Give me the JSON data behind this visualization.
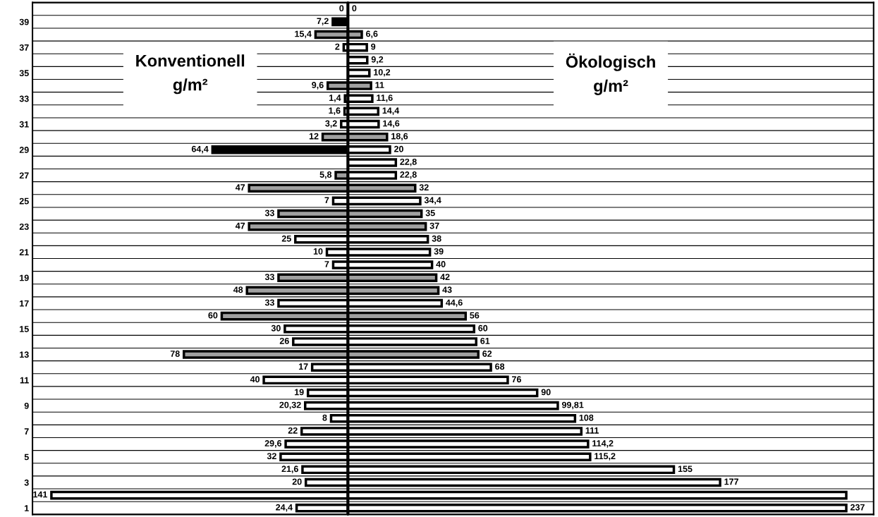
{
  "chart_data": [
    {
      "type": "bar",
      "orientation": "horizontal",
      "categories": [
        null,
        "39",
        null,
        "37",
        null,
        "35",
        null,
        "33",
        null,
        "31",
        null,
        "29",
        null,
        "27",
        null,
        "25",
        null,
        "23",
        null,
        "21",
        null,
        "19",
        null,
        "17",
        null,
        "15",
        null,
        "13",
        null,
        "11",
        null,
        "9",
        null,
        "7",
        null,
        "5",
        null,
        "3",
        null,
        "1"
      ],
      "xlim": [
        150,
        0
      ],
      "series": [
        {
          "values": [
            0,
            7.2,
            15.4,
            2,
            null,
            null,
            9.6,
            1.4,
            1.6,
            3.2,
            12,
            64.4,
            null,
            5.8,
            47,
            7,
            33,
            47,
            25,
            10,
            7,
            33,
            48,
            33,
            60,
            30,
            26,
            78,
            17,
            40,
            19,
            20.32,
            8,
            22,
            29.6,
            32,
            21.6,
            20,
            141,
            24.4
          ],
          "value_labels": [
            "0",
            "7,2",
            "15,4",
            "2",
            null,
            null,
            "9,6",
            "1,4",
            "1,6",
            "3,2",
            "12",
            "64,4",
            null,
            "5,8",
            "47",
            "7",
            "33",
            "47",
            "25",
            "10",
            "7",
            "33",
            "48",
            "33",
            "60",
            "30",
            "26",
            "78",
            "17",
            "40",
            "19",
            "20,32",
            "8",
            "22",
            "29,6",
            "32",
            "21,6",
            "20",
            "141",
            "24,4"
          ],
          "colors": [
            "#ffffff",
            "#000000",
            "#a0a0a0",
            "#ffffff",
            "#ffffff",
            "#ffffff",
            "#a0a0a0",
            "#ffffff",
            "#ffffff",
            "#ffffff",
            "#a0a0a0",
            "#000000",
            "#ffffff",
            "#a0a0a0",
            "#a0a0a0",
            "#ffffff",
            "#a0a0a0",
            "#a0a0a0",
            "#ffffff",
            "#ffffff",
            "#ffffff",
            "#a0a0a0",
            "#a0a0a0",
            "#ffffff",
            "#a0a0a0",
            "#ffffff",
            "#ffffff",
            "#a0a0a0",
            "#ffffff",
            "#ffffff",
            "#ffffff",
            "#ffffff",
            "#ffffff",
            "#ffffff",
            "#ffffff",
            "#ffffff",
            "#ffffff",
            "#ffffff",
            "#ffffff",
            "#ffffff"
          ]
        }
      ],
      "ref_lines": [
        {
          "axis": "x",
          "value": 0,
          "color": "#000000"
        }
      ],
      "annotations": [
        "Konventionell\ng/m²"
      ],
      "grid": "y",
      "legend": false,
      "tick_labels": "y"
    },
    {
      "type": "bar",
      "orientation": "horizontal",
      "categories": [
        null,
        "39",
        null,
        "37",
        null,
        "35",
        null,
        "33",
        null,
        "31",
        null,
        "29",
        null,
        "27",
        null,
        "25",
        null,
        "23",
        null,
        "21",
        null,
        "19",
        null,
        "17",
        null,
        "15",
        null,
        "13",
        null,
        "11",
        null,
        "9",
        null,
        "7",
        null,
        "5",
        null,
        "3",
        null,
        "1"
      ],
      "xlim": [
        0,
        250
      ],
      "series": [
        {
          "values": [
            0,
            null,
            6.6,
            9,
            9.2,
            10.2,
            11,
            11.6,
            14.4,
            14.6,
            18.6,
            20,
            22.8,
            22.8,
            32,
            34.4,
            35,
            37,
            38,
            39,
            40,
            42,
            43,
            44.6,
            56,
            60,
            61,
            62,
            68,
            76,
            90,
            99.81,
            108,
            111,
            114.2,
            115.2,
            155,
            177,
            237,
            237
          ],
          "value_labels": [
            "0",
            null,
            "6,6",
            "9",
            "9,2",
            "10,2",
            "11",
            "11,6",
            "14,4",
            "14,6",
            "18,6",
            "20",
            "22,8",
            "22,8",
            "32",
            "34,4",
            "35",
            "37",
            "38",
            "39",
            "40",
            "42",
            "43",
            "44,6",
            "56",
            "60",
            "61",
            "62",
            "68",
            "76",
            "90",
            "99,81",
            "108",
            "111",
            "114,2",
            "115,2",
            "155",
            "177",
            null,
            "237"
          ],
          "colors": [
            "#ffffff",
            "#ffffff",
            "#a0a0a0",
            "#ffffff",
            "#ffffff",
            "#ffffff",
            "#a0a0a0",
            "#ffffff",
            "#ffffff",
            "#ffffff",
            "#a0a0a0",
            "#ffffff",
            "#ffffff",
            "#ffffff",
            "#a0a0a0",
            "#ffffff",
            "#a0a0a0",
            "#a0a0a0",
            "#ffffff",
            "#ffffff",
            "#ffffff",
            "#a0a0a0",
            "#a0a0a0",
            "#ffffff",
            "#a0a0a0",
            "#ffffff",
            "#ffffff",
            "#a0a0a0",
            "#ffffff",
            "#ffffff",
            "#ffffff",
            "#ffffff",
            "#ffffff",
            "#ffffff",
            "#ffffff",
            "#ffffff",
            "#ffffff",
            "#ffffff",
            "#ffffff",
            "#ffffff"
          ]
        }
      ],
      "ref_lines": [
        {
          "axis": "x",
          "value": 0,
          "color": "#000000"
        }
      ],
      "annotations": [
        "Ökologisch\ng/m²"
      ],
      "grid": "y",
      "legend": false,
      "tick_labels": false
    }
  ]
}
